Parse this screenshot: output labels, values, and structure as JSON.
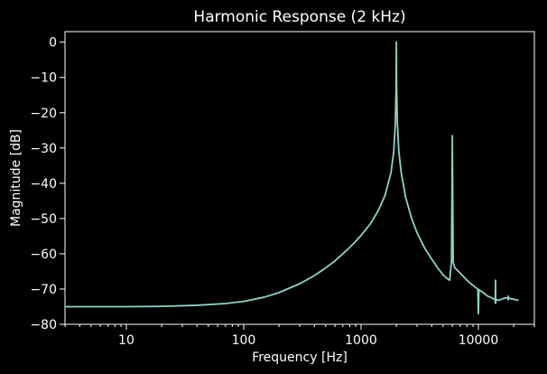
{
  "chart_data": {
    "type": "line",
    "title": "Harmonic Response (2 kHz)",
    "xlabel": "Frequency [Hz]",
    "ylabel": "Magnitude [dB]",
    "x_scale": "log",
    "xlim": [
      3,
      30000
    ],
    "ylim": [
      -80,
      3
    ],
    "x_ticks": [
      10,
      100,
      1000,
      10000
    ],
    "x_tick_labels": [
      "10",
      "100",
      "1000",
      "10000"
    ],
    "y_ticks": [
      0,
      -10,
      -20,
      -30,
      -40,
      -50,
      -60,
      -70,
      -80
    ],
    "y_tick_labels": [
      "0",
      "−10",
      "−20",
      "−30",
      "−40",
      "−50",
      "−60",
      "−70",
      "−80"
    ],
    "grid": false,
    "colors": {
      "background": "#000000",
      "axes": "#ffffff",
      "line": "#8dd3c7"
    },
    "series": [
      {
        "x": [
          3,
          5,
          10,
          20,
          40,
          70,
          100,
          150,
          200,
          300,
          400,
          500,
          600,
          700,
          800,
          900,
          1000,
          1200,
          1400,
          1600,
          1800,
          1900,
          1960,
          1990,
          2000,
          2010,
          2040,
          2100,
          2200,
          2400,
          2700,
          3000,
          3500,
          4000,
          4500,
          5000,
          5400,
          5700,
          5900,
          5950,
          6000,
          6050,
          6100,
          6300,
          7000,
          8000,
          9000,
          9900,
          9950,
          10000,
          10050,
          10100,
          11000,
          12000,
          13000,
          13900,
          13950,
          14000,
          14050,
          14100,
          15000,
          16000,
          17000,
          17900,
          17950,
          18000,
          18050,
          18100,
          20000,
          22000
        ],
        "y": [
          -75,
          -75,
          -75,
          -74.9,
          -74.6,
          -74.1,
          -73.5,
          -72.3,
          -71,
          -68.5,
          -66.2,
          -64,
          -62,
          -60,
          -58.2,
          -56.5,
          -54.8,
          -51.5,
          -47.8,
          -43.5,
          -37,
          -31,
          -23,
          -13,
          0,
          -13,
          -23,
          -31,
          -37,
          -44,
          -50,
          -54,
          -58.5,
          -61.5,
          -64,
          -66,
          -67,
          -67.5,
          -62,
          -45,
          -26.5,
          -45,
          -62.5,
          -64,
          -65.5,
          -67.5,
          -69,
          -70,
          -74,
          -77,
          -74,
          -70.2,
          -71,
          -72,
          -72.5,
          -73,
          -74,
          -67.5,
          -74,
          -73,
          -73.2,
          -72.8,
          -72.5,
          -72.5,
          -73,
          -72,
          -73,
          -72.6,
          -72.9,
          -73.2
        ]
      }
    ]
  }
}
